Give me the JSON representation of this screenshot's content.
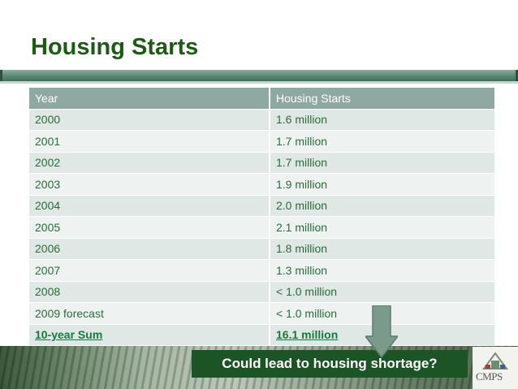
{
  "slide": {
    "title": "Housing Starts",
    "callout": "Could lead to housing shortage?",
    "logo_text": "CMPS"
  },
  "table": {
    "headers": [
      "Year",
      "Housing Starts"
    ],
    "rows": [
      {
        "year": "2000",
        "starts": "1.6 million"
      },
      {
        "year": "2001",
        "starts": "1.7 million"
      },
      {
        "year": "2002",
        "starts": "1.7 million"
      },
      {
        "year": "2003",
        "starts": "1.9 million"
      },
      {
        "year": "2004",
        "starts": "2.0 million"
      },
      {
        "year": "2005",
        "starts": "2.1 million"
      },
      {
        "year": "2006",
        "starts": "1.8 million"
      },
      {
        "year": "2007",
        "starts": "1.3 million"
      },
      {
        "year": "2008",
        "starts": "< 1.0 million"
      },
      {
        "year": "2009 forecast",
        "starts": "< 1.0 million"
      }
    ],
    "sum": {
      "year": "10-year Sum",
      "starts": "16.1 million"
    }
  },
  "colors": {
    "title": "#1e5a16",
    "header_bg": "#8fa8a2",
    "row_odd": "#dfe8e4",
    "row_even": "#eef3f1",
    "text": "#2a6d3a",
    "callout_bg": "#1d5426",
    "arrow": "#7a9a8c"
  },
  "icons": [
    "down-arrow-icon",
    "cmps-logo"
  ]
}
